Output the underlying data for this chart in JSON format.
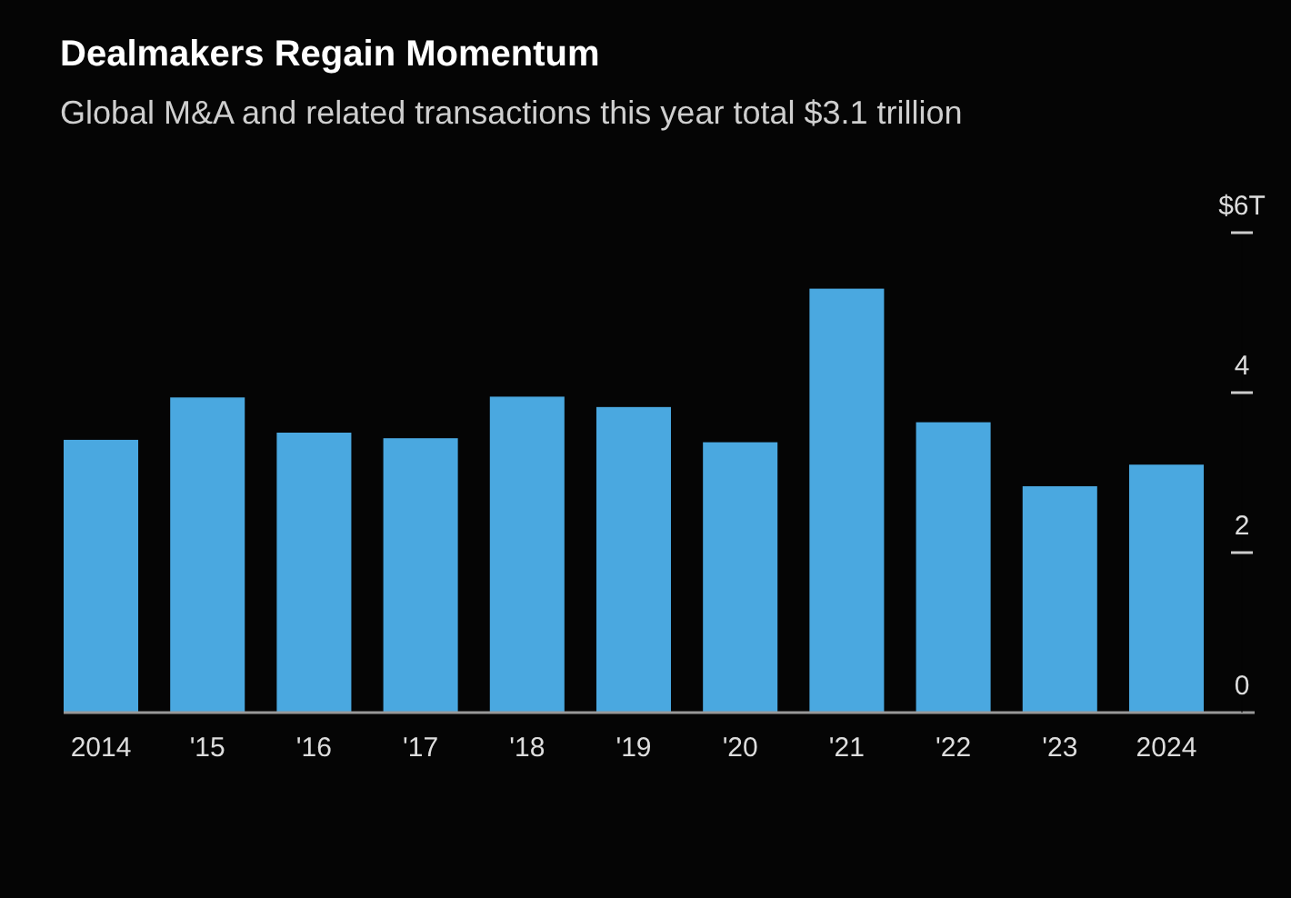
{
  "chart_data": {
    "type": "bar",
    "title": "Dealmakers Regain Momentum",
    "subtitle": "Global M&A and related transactions this year total $3.1 trillion",
    "categories": [
      "2014",
      "'15",
      "'16",
      "'17",
      "'18",
      "'19",
      "'20",
      "'21",
      "'22",
      "'23",
      "2024"
    ],
    "values": [
      3.41,
      3.94,
      3.5,
      3.43,
      3.95,
      3.82,
      3.38,
      5.3,
      3.63,
      2.83,
      3.1
    ],
    "color": "#4aa8e0",
    "ylim": [
      0,
      6
    ],
    "yticks": [
      0,
      2,
      4,
      {
        "value": 6,
        "label": "$6T"
      }
    ],
    "grid": false
  }
}
